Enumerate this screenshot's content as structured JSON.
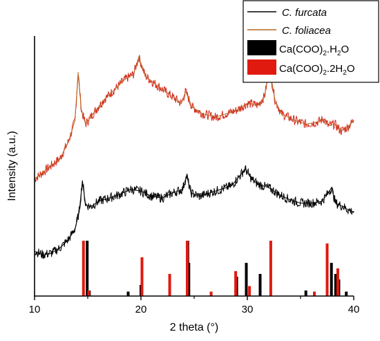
{
  "chart_data": {
    "type": "line",
    "xlabel": "2 theta (°)",
    "ylabel": "Intensity (a.u.)",
    "xlim": [
      10,
      40
    ],
    "x_ticks": [
      "10",
      "20",
      "30",
      "40"
    ],
    "y_ticks": "none",
    "grid": false,
    "legend_position": "top-right",
    "legend": [
      {
        "label": "C. furcata",
        "italic": true,
        "kind": "line",
        "color": "#000000"
      },
      {
        "label": "C. foliacea",
        "italic": true,
        "kind": "line",
        "color": "#b5651d"
      },
      {
        "label": "Ca(COO)",
        "sub1": "2",
        "mid": ".H",
        "sub2": "2",
        "tail": "O",
        "kind": "box",
        "color": "#000000"
      },
      {
        "label": "Ca(COO)",
        "sub1": "2",
        "mid": ".2H",
        "sub2": "2",
        "tail": "O",
        "kind": "box",
        "color": "#e01a0f"
      }
    ],
    "series": [
      {
        "name": "C. foliacea",
        "color": "#b5651d",
        "noise_color": "#d42a1c",
        "x": [
          10.0,
          10.8,
          11.6,
          12.4,
          13.2,
          13.8,
          14.1,
          14.4,
          14.8,
          15.5,
          16.5,
          17.5,
          18.5,
          19.3,
          19.8,
          20.4,
          21.2,
          22.5,
          23.8,
          24.2,
          24.8,
          25.8,
          27.0,
          28.0,
          29.0,
          30.0,
          31.0,
          31.6,
          32.1,
          32.6,
          33.2,
          34.5,
          35.5,
          36.5,
          37.2,
          37.6,
          38.2,
          38.8,
          39.4,
          40.0
        ],
        "y": [
          6.4,
          6.8,
          7.2,
          7.6,
          8.6,
          9.8,
          12.6,
          10.4,
          9.6,
          10.2,
          11.0,
          11.6,
          12.2,
          12.5,
          13.5,
          12.4,
          12.0,
          11.4,
          10.8,
          11.5,
          10.6,
          10.2,
          10.0,
          10.2,
          10.4,
          10.8,
          10.7,
          11.2,
          12.8,
          11.0,
          10.2,
          9.8,
          9.6,
          9.7,
          9.9,
          9.5,
          9.6,
          9.2,
          9.4,
          9.8
        ]
      },
      {
        "name": "C. furcata",
        "color": "#000000",
        "noise_color": "#000000",
        "x": [
          10.0,
          10.8,
          11.6,
          12.4,
          13.2,
          13.8,
          14.2,
          14.5,
          14.8,
          15.3,
          16.0,
          17.0,
          18.0,
          19.0,
          20.0,
          21.0,
          22.0,
          23.0,
          23.9,
          24.3,
          24.7,
          25.5,
          26.5,
          27.5,
          28.5,
          29.3,
          29.8,
          30.4,
          31.0,
          32.0,
          33.0,
          34.0,
          35.0,
          36.0,
          37.0,
          37.6,
          37.9,
          38.3,
          39.0,
          39.5,
          40.0
        ],
        "y": [
          2.2,
          2.0,
          2.1,
          2.4,
          2.9,
          3.5,
          4.5,
          6.3,
          4.9,
          4.8,
          5.1,
          5.3,
          5.5,
          5.8,
          5.7,
          5.4,
          5.3,
          5.6,
          5.8,
          6.6,
          5.6,
          5.4,
          5.6,
          5.8,
          6.0,
          6.6,
          7.0,
          6.4,
          6.1,
          5.9,
          5.5,
          5.2,
          5.0,
          5.0,
          5.1,
          5.6,
          5.9,
          5.0,
          4.8,
          4.6,
          4.5
        ]
      }
    ],
    "reference_bars": [
      {
        "name": "Ca(COO)2.H2O",
        "color": "#000000",
        "positions": [
          14.95,
          15.15,
          18.8,
          20.0,
          24.4,
          24.5,
          29.0,
          29.9,
          31.2,
          35.5,
          37.9,
          38.3,
          38.6,
          39.3
        ],
        "heights": [
          100,
          10,
          8,
          20,
          100,
          60,
          35,
          60,
          40,
          10,
          60,
          40,
          30,
          8
        ]
      },
      {
        "name": "Ca(COO)2.2H2O",
        "color": "#e01a0f",
        "positions": [
          14.6,
          15.1,
          20.1,
          22.7,
          24.35,
          26.6,
          28.9,
          30.2,
          32.2,
          36.3,
          37.5,
          38.5
        ],
        "heights": [
          100,
          10,
          70,
          40,
          100,
          8,
          45,
          18,
          100,
          8,
          95,
          50
        ]
      }
    ]
  }
}
